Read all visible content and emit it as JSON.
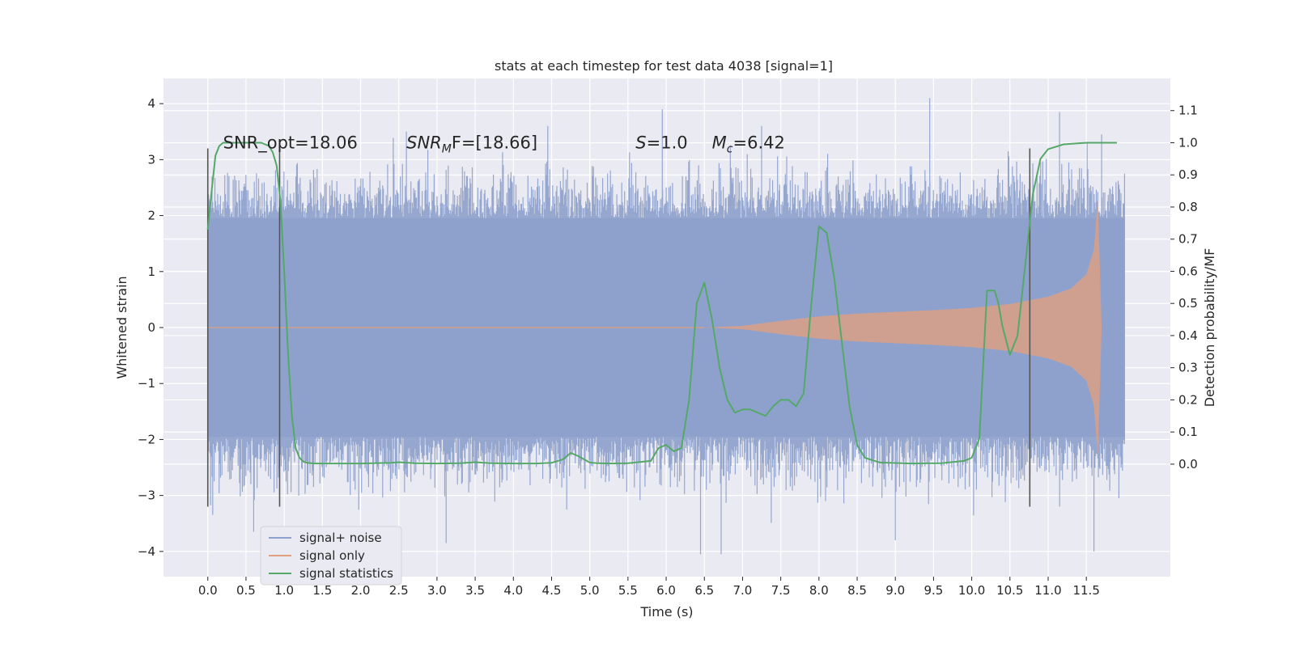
{
  "chart_data": {
    "type": "line",
    "title": "stats at each timestep for test data 4038 [signal=1]",
    "xlabel": "Time (s)",
    "ylabel": "Whitened strain",
    "y2label": "Detection probability/MF",
    "xlim": [
      -0.58,
      12.6
    ],
    "ylim": [
      -4.45,
      4.45
    ],
    "y2lim": [
      -0.35,
      1.2
    ],
    "x_ticks": [
      "0.0",
      "0.5",
      "1.0",
      "1.5",
      "2.0",
      "2.5",
      "3.0",
      "3.5",
      "4.0",
      "4.5",
      "5.0",
      "5.5",
      "6.0",
      "6.5",
      "7.0",
      "7.5",
      "8.0",
      "8.5",
      "9.0",
      "9.5",
      "10.0",
      "10.5",
      "11.0",
      "11.5"
    ],
    "y_ticks": [
      "4",
      "3",
      "2",
      "1",
      "0",
      "−1",
      "−2",
      "−3",
      "−4"
    ],
    "y2_ticks": [
      "1.1",
      "1.0",
      "0.9",
      "0.8",
      "0.7",
      "0.6",
      "0.5",
      "0.4",
      "0.3",
      "0.2",
      "0.1",
      "0.0"
    ],
    "grid": true,
    "legend_position": "lower-left",
    "colors": {
      "background": "#eaeaf2",
      "signal_noise": "#8da0cb",
      "signal_only": "#e0a080",
      "statistics": "#55a868",
      "vlines": "#555555"
    },
    "series": [
      {
        "name": "signal+ noise",
        "kind": "noise",
        "x_range": [
          0.0,
          12.0
        ],
        "band": [
          -1.95,
          1.95
        ],
        "peak_max": 4.1,
        "peak_min": -4.05
      },
      {
        "name": "signal only",
        "kind": "chirp",
        "x": [
          6.5,
          7.0,
          7.5,
          8.0,
          8.5,
          9.0,
          9.5,
          10.0,
          10.5,
          11.0,
          11.3,
          11.5,
          11.6,
          11.65,
          11.7
        ],
        "envelope": [
          0.0,
          0.03,
          0.12,
          0.2,
          0.25,
          0.28,
          0.31,
          0.35,
          0.42,
          0.55,
          0.7,
          0.95,
          1.4,
          2.3,
          0.0
        ]
      },
      {
        "name": "signal statistics",
        "axis": "y2",
        "x": [
          0.0,
          0.05,
          0.1,
          0.15,
          0.2,
          0.3,
          0.5,
          0.7,
          0.8,
          0.85,
          0.9,
          0.95,
          1.0,
          1.05,
          1.1,
          1.15,
          1.2,
          1.25,
          1.3,
          1.4,
          1.6,
          2.0,
          2.4,
          2.5,
          2.7,
          3.0,
          3.3,
          3.5,
          3.7,
          4.0,
          4.3,
          4.5,
          4.65,
          4.75,
          4.85,
          5.0,
          5.1,
          5.3,
          5.5,
          5.8,
          5.9,
          6.0,
          6.1,
          6.2,
          6.3,
          6.4,
          6.5,
          6.6,
          6.7,
          6.8,
          6.9,
          7.0,
          7.1,
          7.2,
          7.3,
          7.4,
          7.5,
          7.6,
          7.7,
          7.8,
          7.9,
          8.0,
          8.1,
          8.2,
          8.3,
          8.4,
          8.5,
          8.6,
          8.8,
          9.2,
          9.6,
          9.9,
          10.0,
          10.1,
          10.2,
          10.3,
          10.35,
          10.4,
          10.5,
          10.6,
          10.7,
          10.8,
          10.9,
          11.0,
          11.2,
          11.5,
          11.9
        ],
        "y": [
          0.73,
          0.85,
          0.96,
          0.99,
          1.0,
          1.0,
          1.0,
          1.0,
          0.99,
          0.97,
          0.93,
          0.82,
          0.6,
          0.35,
          0.15,
          0.05,
          0.02,
          0.008,
          0.004,
          0.002,
          0.002,
          0.002,
          0.004,
          0.006,
          0.003,
          0.002,
          0.003,
          0.006,
          0.003,
          0.002,
          0.002,
          0.004,
          0.015,
          0.035,
          0.025,
          0.005,
          0.003,
          0.002,
          0.003,
          0.01,
          0.05,
          0.06,
          0.04,
          0.05,
          0.2,
          0.5,
          0.565,
          0.45,
          0.3,
          0.2,
          0.16,
          0.17,
          0.17,
          0.16,
          0.15,
          0.18,
          0.2,
          0.2,
          0.18,
          0.22,
          0.5,
          0.74,
          0.72,
          0.58,
          0.38,
          0.18,
          0.06,
          0.02,
          0.005,
          0.002,
          0.003,
          0.01,
          0.02,
          0.08,
          0.54,
          0.54,
          0.5,
          0.43,
          0.34,
          0.4,
          0.62,
          0.84,
          0.95,
          0.98,
          0.995,
          1.0,
          1.0
        ]
      }
    ],
    "vlines": [
      {
        "x": 0.0,
        "y": [
          -3.2,
          3.2
        ]
      },
      {
        "x": 0.94,
        "y": [
          -3.2,
          3.2
        ]
      },
      {
        "x": 10.76,
        "y": [
          -3.2,
          3.2
        ]
      }
    ],
    "annotations": [
      {
        "id": "snr-opt",
        "text": "SNR_opt=18.06",
        "x": 0.2
      },
      {
        "id": "snr-mf",
        "base": "SNR",
        "sub": "M",
        "rest": "F=[18.66]",
        "x": 2.6
      },
      {
        "id": "s-val",
        "base": "S",
        "rest": "=1.0",
        "x": 5.6
      },
      {
        "id": "mc-val",
        "base": "M",
        "sub": "c",
        "rest": "=6.42",
        "x": 6.6
      }
    ],
    "annotation_y": 3.3
  }
}
